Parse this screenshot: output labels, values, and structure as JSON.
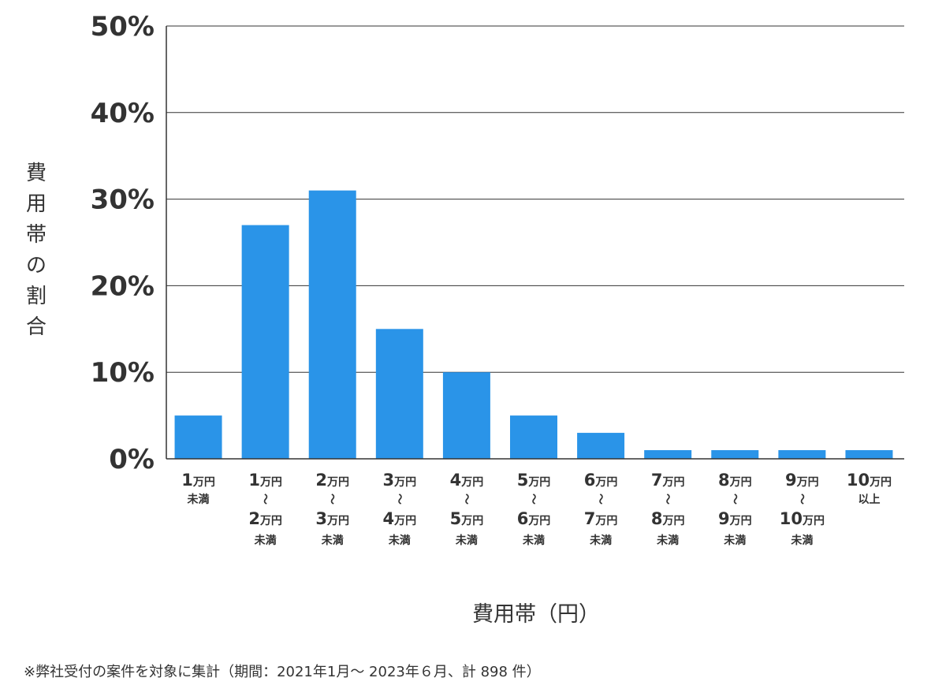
{
  "chart_data": {
    "type": "bar",
    "categories": [
      [
        {
          "num": "1",
          "unit": "万円"
        },
        {
          "text": "未満"
        }
      ],
      [
        {
          "num": "1",
          "unit": "万円"
        },
        {
          "text": "〜"
        },
        {
          "num": "2",
          "unit": "万円"
        },
        {
          "text": "未満"
        }
      ],
      [
        {
          "num": "2",
          "unit": "万円"
        },
        {
          "text": "〜"
        },
        {
          "num": "3",
          "unit": "万円"
        },
        {
          "text": "未満"
        }
      ],
      [
        {
          "num": "3",
          "unit": "万円"
        },
        {
          "text": "〜"
        },
        {
          "num": "4",
          "unit": "万円"
        },
        {
          "text": "未満"
        }
      ],
      [
        {
          "num": "4",
          "unit": "万円"
        },
        {
          "text": "〜"
        },
        {
          "num": "5",
          "unit": "万円"
        },
        {
          "text": "未満"
        }
      ],
      [
        {
          "num": "5",
          "unit": "万円"
        },
        {
          "text": "〜"
        },
        {
          "num": "6",
          "unit": "万円"
        },
        {
          "text": "未満"
        }
      ],
      [
        {
          "num": "6",
          "unit": "万円"
        },
        {
          "text": "〜"
        },
        {
          "num": "7",
          "unit": "万円"
        },
        {
          "text": "未満"
        }
      ],
      [
        {
          "num": "7",
          "unit": "万円"
        },
        {
          "text": "〜"
        },
        {
          "num": "8",
          "unit": "万円"
        },
        {
          "text": "未満"
        }
      ],
      [
        {
          "num": "8",
          "unit": "万円"
        },
        {
          "text": "〜"
        },
        {
          "num": "9",
          "unit": "万円"
        },
        {
          "text": "未満"
        }
      ],
      [
        {
          "num": "9",
          "unit": "万円"
        },
        {
          "text": "〜"
        },
        {
          "num": "10",
          "unit": "万円"
        },
        {
          "text": "未満"
        }
      ],
      [
        {
          "num": "10",
          "unit": "万円"
        },
        {
          "text": "以上"
        }
      ]
    ],
    "values": [
      5,
      27,
      31,
      15,
      10,
      5,
      3,
      1,
      1,
      1,
      1
    ],
    "title": "",
    "xlabel": "費用帯（円）",
    "ylabel": "費用帯の割合",
    "ylim": [
      0,
      50
    ],
    "yticks": [
      0,
      10,
      20,
      30,
      40,
      50
    ],
    "ytick_suffix": "%",
    "grid": true,
    "legend": "none",
    "bar_color": "#2a94e8",
    "grid_color": "#333333",
    "text_color": "#333333"
  },
  "footnote": "※弊社受付の案件を対象に集計（期間：2021年1月～ 2023年６月、計 898 件）"
}
